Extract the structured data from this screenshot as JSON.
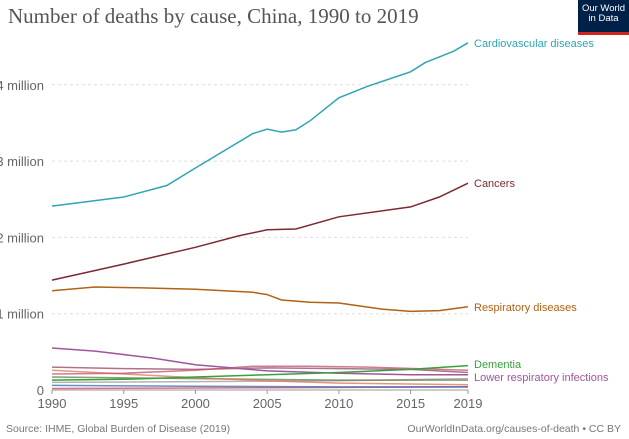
{
  "title": "Number of deaths by cause, China, 1990 to 2019",
  "logo": {
    "line1": "Our World",
    "line2": "in Data",
    "bg": "#002147",
    "accent": "#ce261e"
  },
  "source": "Source: IHME, Global Burden of Disease (2019)",
  "url": "OurWorldInData.org/causes-of-death • CC BY",
  "chart_data": {
    "type": "line",
    "title": "Number of deaths by cause, China, 1990 to 2019",
    "xlim": [
      1990,
      2019
    ],
    "ylim": [
      0,
      4600000
    ],
    "grid": "horizontal dashed",
    "x_ticks": [
      {
        "v": 1990,
        "l": "1990"
      },
      {
        "v": 1995,
        "l": "1995"
      },
      {
        "v": 2000,
        "l": "2000"
      },
      {
        "v": 2005,
        "l": "2005"
      },
      {
        "v": 2010,
        "l": "2010"
      },
      {
        "v": 2015,
        "l": "2015"
      },
      {
        "v": 2019,
        "l": "2019"
      }
    ],
    "y_ticks": [
      {
        "v": 0,
        "l": "0"
      },
      {
        "v": 1000000,
        "l": "1 million"
      },
      {
        "v": 2000000,
        "l": "2 million"
      },
      {
        "v": 3000000,
        "l": "3 million"
      },
      {
        "v": 4000000,
        "l": "4 million"
      }
    ],
    "legend": "inline labels at line ends (right)",
    "series": [
      {
        "name": "Cardiovascular diseases",
        "color": "#2fa5b5",
        "points": [
          [
            1990,
            2410000
          ],
          [
            1995,
            2530000
          ],
          [
            1998,
            2680000
          ],
          [
            2000,
            2910000
          ],
          [
            2004,
            3360000
          ],
          [
            2005,
            3420000
          ],
          [
            2006,
            3380000
          ],
          [
            2007,
            3410000
          ],
          [
            2008,
            3530000
          ],
          [
            2010,
            3830000
          ],
          [
            2012,
            3980000
          ],
          [
            2015,
            4170000
          ],
          [
            2016,
            4290000
          ],
          [
            2018,
            4440000
          ],
          [
            2019,
            4550000
          ]
        ]
      },
      {
        "name": "Cancers",
        "color": "#7b2a32",
        "points": [
          [
            1990,
            1440000
          ],
          [
            1995,
            1650000
          ],
          [
            2000,
            1870000
          ],
          [
            2003,
            2020000
          ],
          [
            2005,
            2100000
          ],
          [
            2007,
            2110000
          ],
          [
            2010,
            2270000
          ],
          [
            2015,
            2400000
          ],
          [
            2017,
            2530000
          ],
          [
            2019,
            2710000
          ]
        ]
      },
      {
        "name": "Respiratory diseases",
        "color": "#b16214",
        "points": [
          [
            1990,
            1300000
          ],
          [
            1993,
            1350000
          ],
          [
            1996,
            1340000
          ],
          [
            2000,
            1320000
          ],
          [
            2004,
            1280000
          ],
          [
            2005,
            1250000
          ],
          [
            2006,
            1180000
          ],
          [
            2008,
            1150000
          ],
          [
            2010,
            1140000
          ],
          [
            2013,
            1060000
          ],
          [
            2015,
            1030000
          ],
          [
            2017,
            1040000
          ],
          [
            2019,
            1090000
          ]
        ]
      },
      {
        "name": "Dementia",
        "color": "#38a13c",
        "points": [
          [
            1990,
            130000
          ],
          [
            1995,
            140000
          ],
          [
            2000,
            170000
          ],
          [
            2005,
            200000
          ],
          [
            2010,
            230000
          ],
          [
            2015,
            270000
          ],
          [
            2019,
            320000
          ]
        ]
      },
      {
        "name": "Lower respiratory infections",
        "color": "#a2559c",
        "points": [
          [
            1990,
            550000
          ],
          [
            1993,
            510000
          ],
          [
            1997,
            420000
          ],
          [
            2000,
            330000
          ],
          [
            2005,
            250000
          ],
          [
            2010,
            220000
          ],
          [
            2015,
            200000
          ],
          [
            2019,
            200000
          ]
        ]
      },
      {
        "name": "",
        "color": "#c15065",
        "points": [
          [
            1990,
            210000
          ],
          [
            1995,
            220000
          ],
          [
            2000,
            260000
          ],
          [
            2004,
            310000
          ],
          [
            2008,
            310000
          ],
          [
            2012,
            300000
          ],
          [
            2019,
            260000
          ]
        ]
      },
      {
        "name": "",
        "color": "#8c4569",
        "points": [
          [
            1990,
            300000
          ],
          [
            1995,
            280000
          ],
          [
            2000,
            270000
          ],
          [
            2005,
            290000
          ],
          [
            2010,
            280000
          ],
          [
            2015,
            270000
          ],
          [
            2019,
            230000
          ]
        ]
      },
      {
        "name": "",
        "color": "#286bbb",
        "points": [
          [
            1990,
            60000
          ],
          [
            2000,
            50000
          ],
          [
            2010,
            40000
          ],
          [
            2019,
            40000
          ]
        ]
      },
      {
        "name": "",
        "color": "#e56e5a",
        "points": [
          [
            1990,
            260000
          ],
          [
            1995,
            210000
          ],
          [
            2000,
            160000
          ],
          [
            2005,
            120000
          ],
          [
            2010,
            90000
          ],
          [
            2019,
            70000
          ]
        ]
      },
      {
        "name": "",
        "color": "#578145",
        "points": [
          [
            1990,
            170000
          ],
          [
            2000,
            150000
          ],
          [
            2010,
            130000
          ],
          [
            2019,
            130000
          ]
        ]
      },
      {
        "name": "",
        "color": "#999999",
        "points": [
          [
            1990,
            100000
          ],
          [
            2000,
            110000
          ],
          [
            2010,
            120000
          ],
          [
            2019,
            150000
          ]
        ]
      },
      {
        "name": "",
        "color": "#d73c50",
        "points": [
          [
            1990,
            20000
          ],
          [
            2005,
            30000
          ],
          [
            2019,
            40000
          ]
        ]
      }
    ]
  }
}
